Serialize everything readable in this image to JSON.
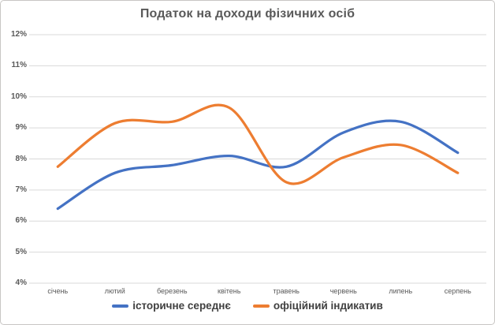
{
  "chart_data": {
    "type": "line",
    "title": "Податок на доходи фізичних осіб",
    "categories": [
      "січень",
      "лютий",
      "березень",
      "квітень",
      "травень",
      "червень",
      "липень",
      "серпень"
    ],
    "series": [
      {
        "name": "історичне середнє",
        "color": "#4472C4",
        "values": [
          6.4,
          7.55,
          7.8,
          8.1,
          7.75,
          8.85,
          9.2,
          8.2
        ]
      },
      {
        "name": "офіційний індикатив",
        "color": "#ED7D31",
        "values": [
          7.75,
          9.15,
          9.2,
          9.65,
          7.25,
          8.05,
          8.45,
          7.55
        ]
      }
    ],
    "ylim": [
      4,
      12
    ],
    "ytick_step": 1,
    "ytick_suffix": "%",
    "grid": "horizontal",
    "legend_position": "bottom",
    "smooth_lines": true
  },
  "colors": {
    "background": "#FFFFFF",
    "border": "#C8C6C4",
    "gridline": "#D9D9D9",
    "axis_text": "#595959",
    "title_text": "#595959",
    "legend_text": "#404040"
  }
}
